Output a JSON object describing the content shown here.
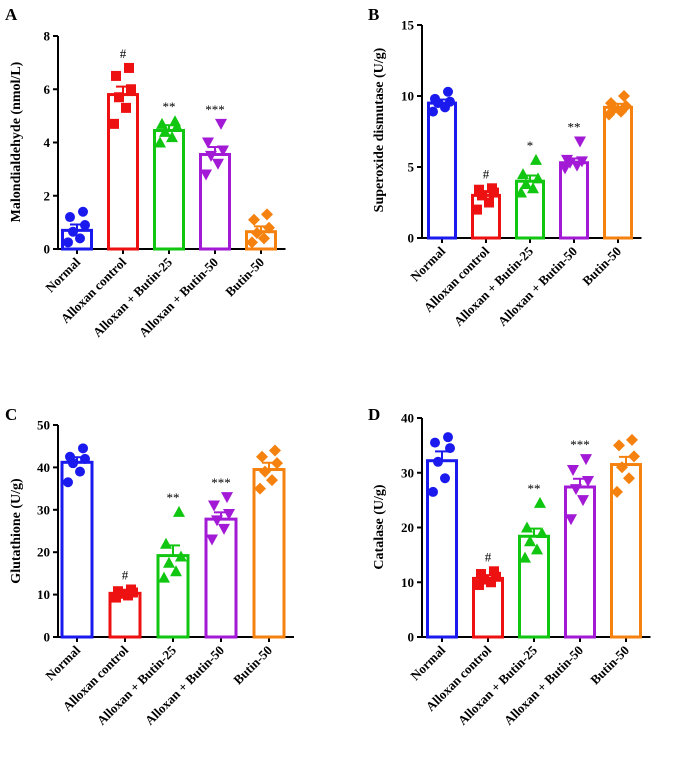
{
  "chart_data": [
    {
      "type": "bar",
      "panel": "A",
      "ylabel": "Malondialdehyde (nmol/L)",
      "ylim": [
        0,
        8
      ],
      "yticks": [
        0,
        2,
        4,
        6,
        8
      ],
      "categories": [
        "Normal",
        "Alloxan control",
        "Alloxan + Butin-25",
        "Alloxan + Butin-50",
        "Butin-50"
      ],
      "values": [
        0.7,
        5.8,
        4.45,
        3.55,
        0.65
      ],
      "errors": [
        0.22,
        0.3,
        0.2,
        0.28,
        0.2
      ],
      "significance": [
        "",
        "#",
        "**",
        "***",
        ""
      ],
      "points": [
        [
          0.25,
          0.4,
          0.65,
          0.9,
          1.2,
          1.4
        ],
        [
          4.7,
          5.3,
          5.7,
          6.0,
          6.5,
          6.8
        ],
        [
          4.0,
          4.2,
          4.4,
          4.6,
          4.7,
          4.8
        ],
        [
          2.8,
          3.2,
          3.5,
          3.7,
          4.0,
          4.7
        ],
        [
          0.25,
          0.4,
          0.6,
          0.8,
          1.1,
          1.3
        ]
      ],
      "colors": [
        "#1a1aee",
        "#ee1111",
        "#11c611",
        "#a31ad6",
        "#f5820f"
      ],
      "markers": [
        "circle",
        "square",
        "triangle-up",
        "triangle-down",
        "diamond"
      ]
    },
    {
      "type": "bar",
      "panel": "B",
      "ylabel": "Superoxide dismutase (U/g)",
      "ylim": [
        0,
        15
      ],
      "yticks": [
        0,
        5,
        10,
        15
      ],
      "categories": [
        "Normal",
        "Alloxan control",
        "Alloxan + Butin-25",
        "Alloxan + Butin-50",
        "Butin-50"
      ],
      "values": [
        9.5,
        3.0,
        4.0,
        5.3,
        9.2
      ],
      "errors": [
        0.25,
        0.3,
        0.4,
        0.3,
        0.25
      ],
      "significance": [
        "",
        "#",
        "*",
        "**",
        ""
      ],
      "points": [
        [
          8.9,
          9.2,
          9.5,
          9.6,
          9.8,
          10.3
        ],
        [
          2.0,
          2.5,
          3.0,
          3.2,
          3.4,
          3.5
        ],
        [
          3.2,
          3.5,
          3.8,
          4.2,
          4.5,
          5.5
        ],
        [
          4.9,
          5.1,
          5.3,
          5.4,
          5.5,
          6.8
        ],
        [
          8.7,
          8.9,
          9.1,
          9.3,
          9.5,
          10.0
        ]
      ],
      "colors": [
        "#1a1aee",
        "#ee1111",
        "#11c611",
        "#a31ad6",
        "#f5820f"
      ],
      "markers": [
        "circle",
        "square",
        "triangle-up",
        "triangle-down",
        "diamond"
      ]
    },
    {
      "type": "bar",
      "panel": "C",
      "ylabel": "Glutathione (U/g)",
      "ylim": [
        0,
        50
      ],
      "yticks": [
        0,
        10,
        20,
        30,
        40,
        50
      ],
      "categories": [
        "Normal",
        "Alloxan control",
        "Alloxan + Butin-25",
        "Alloxan + Butin-50",
        "Butin-50"
      ],
      "values": [
        41.2,
        10.3,
        19.2,
        27.8,
        39.5
      ],
      "errors": [
        1.2,
        0.4,
        2.4,
        1.6,
        1.6
      ],
      "significance": [
        "",
        "#",
        "**",
        "***",
        ""
      ],
      "points": [
        [
          36.5,
          39.0,
          41.0,
          42.0,
          42.5,
          44.5
        ],
        [
          9.3,
          9.8,
          10.2,
          10.5,
          10.8,
          11.2
        ],
        [
          14.0,
          15.5,
          17.5,
          19.0,
          22.0,
          29.5
        ],
        [
          23.0,
          25.5,
          27.5,
          29.0,
          31.0,
          33.0
        ],
        [
          35.0,
          37.0,
          39.0,
          41.0,
          42.5,
          44.0
        ]
      ],
      "colors": [
        "#1a1aee",
        "#ee1111",
        "#11c611",
        "#a31ad6",
        "#f5820f"
      ],
      "markers": [
        "circle",
        "square",
        "triangle-up",
        "triangle-down",
        "diamond"
      ]
    },
    {
      "type": "bar",
      "panel": "D",
      "ylabel": "Catalase (U/g)",
      "ylim": [
        0,
        40
      ],
      "yticks": [
        0,
        10,
        20,
        30,
        40
      ],
      "categories": [
        "Normal",
        "Alloxan control",
        "Alloxan + Butin-25",
        "Alloxan + Butin-50",
        "Butin-50"
      ],
      "values": [
        32.2,
        10.7,
        18.4,
        27.4,
        31.5
      ],
      "errors": [
        1.7,
        0.6,
        1.4,
        1.5,
        1.4
      ],
      "significance": [
        "",
        "#",
        "**",
        "***",
        ""
      ],
      "points": [
        [
          26.5,
          29.0,
          32.0,
          34.5,
          35.5,
          36.5
        ],
        [
          9.5,
          10.0,
          10.5,
          11.0,
          11.5,
          12.0
        ],
        [
          14.5,
          16.0,
          17.5,
          19.0,
          20.0,
          24.5
        ],
        [
          21.5,
          25.0,
          27.0,
          28.5,
          30.5,
          32.5
        ],
        [
          26.5,
          29.0,
          31.0,
          33.0,
          35.0,
          36.0
        ]
      ],
      "colors": [
        "#1a1aee",
        "#ee1111",
        "#11c611",
        "#a31ad6",
        "#f5820f"
      ],
      "markers": [
        "circle",
        "square",
        "triangle-up",
        "triangle-down",
        "diamond"
      ]
    }
  ]
}
